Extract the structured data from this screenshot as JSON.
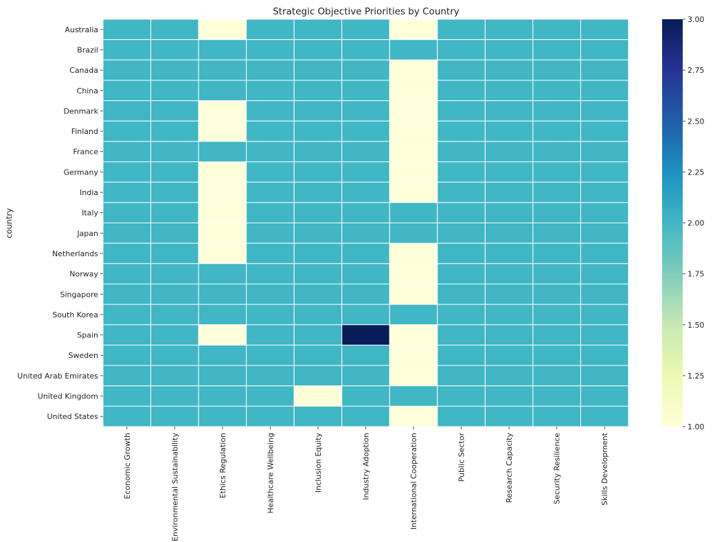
{
  "chart_data": {
    "type": "heatmap",
    "title": "Strategic Objective Priorities by Country",
    "ylabel": "country",
    "xlabel": "",
    "columns": [
      "Economic Growth",
      "Environmental Sustainability",
      "Ethics Regulation",
      "Healthcare Wellbeing",
      "Inclusion Equity",
      "Industry Adoption",
      "International Cooperation",
      "Public Sector",
      "Research Capacity",
      "Security Resilience",
      "Skills Development"
    ],
    "rows": [
      "Australia",
      "Brazil",
      "Canada",
      "China",
      "Denmark",
      "Finland",
      "France",
      "Germany",
      "India",
      "Italy",
      "Japan",
      "Netherlands",
      "Norway",
      "Singapore",
      "South Korea",
      "Spain",
      "Sweden",
      "United Arab Emirates",
      "United Kingdom",
      "United States"
    ],
    "values": [
      [
        2,
        2,
        1,
        2,
        2,
        2,
        1,
        2,
        2,
        2,
        2
      ],
      [
        2,
        2,
        2,
        2,
        2,
        2,
        2,
        2,
        2,
        2,
        2
      ],
      [
        2,
        2,
        2,
        2,
        2,
        2,
        1,
        2,
        2,
        2,
        2
      ],
      [
        2,
        2,
        2,
        2,
        2,
        2,
        1,
        2,
        2,
        2,
        2
      ],
      [
        2,
        2,
        1,
        2,
        2,
        2,
        1,
        2,
        2,
        2,
        2
      ],
      [
        2,
        2,
        1,
        2,
        2,
        2,
        1,
        2,
        2,
        2,
        2
      ],
      [
        2,
        2,
        2,
        2,
        2,
        2,
        1,
        2,
        2,
        2,
        2
      ],
      [
        2,
        2,
        1,
        2,
        2,
        2,
        1,
        2,
        2,
        2,
        2
      ],
      [
        2,
        2,
        1,
        2,
        2,
        2,
        1,
        2,
        2,
        2,
        2
      ],
      [
        2,
        2,
        1,
        2,
        2,
        2,
        2,
        2,
        2,
        2,
        2
      ],
      [
        2,
        2,
        1,
        2,
        2,
        2,
        2,
        2,
        2,
        2,
        2
      ],
      [
        2,
        2,
        1,
        2,
        2,
        2,
        1,
        2,
        2,
        2,
        2
      ],
      [
        2,
        2,
        2,
        2,
        2,
        2,
        1,
        2,
        2,
        2,
        2
      ],
      [
        2,
        2,
        2,
        2,
        2,
        2,
        1,
        2,
        2,
        2,
        2
      ],
      [
        2,
        2,
        2,
        2,
        2,
        2,
        2,
        2,
        2,
        2,
        2
      ],
      [
        2,
        2,
        1,
        2,
        2,
        3,
        1,
        2,
        2,
        2,
        2
      ],
      [
        2,
        2,
        2,
        2,
        2,
        2,
        1,
        2,
        2,
        2,
        2
      ],
      [
        2,
        2,
        2,
        2,
        2,
        2,
        1,
        2,
        2,
        2,
        2
      ],
      [
        2,
        2,
        2,
        2,
        1,
        2,
        2,
        2,
        2,
        2,
        2
      ],
      [
        2,
        2,
        2,
        2,
        2,
        2,
        1,
        2,
        2,
        2,
        2
      ]
    ],
    "vmin": 1.0,
    "vmax": 3.0,
    "colorbar_ticks": [
      "1.00",
      "1.25",
      "1.50",
      "1.75",
      "2.00",
      "2.25",
      "2.50",
      "2.75",
      "3.00"
    ],
    "colormap": "YlGnBu",
    "colormap_stops": [
      "#ffffd9",
      "#edf8b1",
      "#c7e9b4",
      "#7fcdbb",
      "#41b6c4",
      "#1d91c0",
      "#225ea8",
      "#253494",
      "#081d58"
    ],
    "cell_border_color": "#ffffff"
  }
}
